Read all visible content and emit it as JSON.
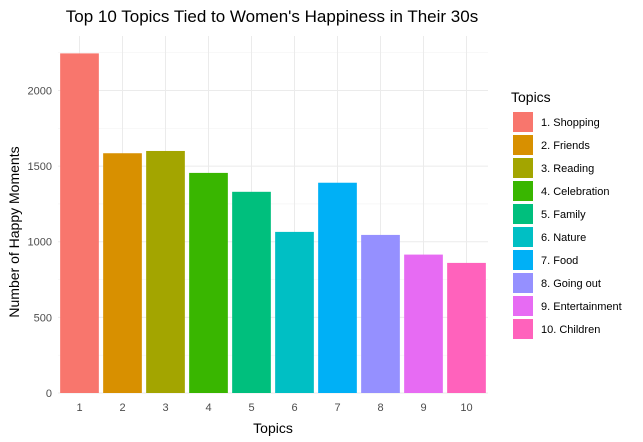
{
  "chart_data": {
    "type": "bar",
    "title": "Top 10 Topics Tied to Women's Happiness in Their 30s",
    "xlabel": "Topics",
    "ylabel": "Number of Happy Moments",
    "categories": [
      "1",
      "2",
      "3",
      "4",
      "5",
      "6",
      "7",
      "8",
      "9",
      "10"
    ],
    "values": [
      2245,
      1585,
      1600,
      1455,
      1330,
      1065,
      1390,
      1045,
      915,
      860
    ],
    "ylim": [
      0,
      2360
    ],
    "yticks": [
      0,
      500,
      1000,
      1500,
      2000
    ],
    "grid": true,
    "legend": {
      "title": "Topics",
      "position": "right",
      "entries": [
        "1. Shopping",
        "2. Friends",
        "3. Reading",
        "4. Celebration",
        "5. Family",
        "6. Nature",
        "7. Food",
        "8. Going out",
        "9. Entertainment",
        "10. Children"
      ]
    },
    "colors": [
      "#F8766D",
      "#D89000",
      "#A3A500",
      "#39B600",
      "#00BF7D",
      "#00BFC4",
      "#00B0F6",
      "#9590FF",
      "#E76BF3",
      "#FF62BC"
    ]
  }
}
